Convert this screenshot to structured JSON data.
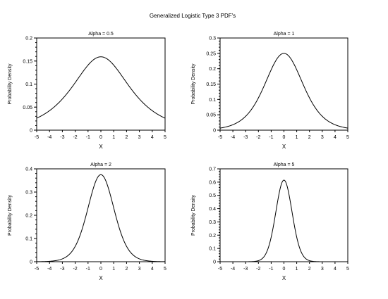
{
  "figure": {
    "title": "Generalized Logistic Type 3 PDF's"
  },
  "chart_data": [
    {
      "type": "line",
      "title": "Alpha = 0.5",
      "xlabel": "X",
      "ylabel": "Probability Density",
      "xlim": [
        -5,
        5
      ],
      "ylim": [
        0,
        0.2
      ],
      "xticks": [
        -5,
        -4,
        -3,
        -2,
        -1,
        0,
        1,
        2,
        3,
        4,
        5
      ],
      "yticks": [
        0,
        0.05,
        0.1,
        0.15,
        0.2
      ],
      "ytick_labels": [
        "0",
        "0.05",
        "0.1",
        "0.15",
        "0.2"
      ],
      "minor_y_step": 0.01,
      "alpha": 0.5,
      "x": [
        -5,
        -4,
        -3,
        -2,
        -1,
        0,
        1,
        2,
        3,
        4,
        5
      ],
      "y": [
        0.026,
        0.043,
        0.068,
        0.1,
        0.134,
        0.159,
        0.134,
        0.1,
        0.068,
        0.043,
        0.026
      ]
    },
    {
      "type": "line",
      "title": "Alpha = 1",
      "xlabel": "X",
      "ylabel": "Probability Density",
      "xlim": [
        -5,
        5
      ],
      "ylim": [
        0,
        0.3
      ],
      "xticks": [
        -5,
        -4,
        -3,
        -2,
        -1,
        0,
        1,
        2,
        3,
        4,
        5
      ],
      "yticks": [
        0,
        0.05,
        0.1,
        0.15,
        0.2,
        0.25,
        0.3
      ],
      "ytick_labels": [
        "0",
        "0.05",
        "0.1",
        "0.15",
        "0.2",
        "0.25",
        "0.3"
      ],
      "minor_y_step": 0.01,
      "alpha": 1,
      "x": [
        -5,
        -4,
        -3,
        -2,
        -1,
        0,
        1,
        2,
        3,
        4,
        5
      ],
      "y": [
        0.007,
        0.018,
        0.045,
        0.105,
        0.197,
        0.25,
        0.197,
        0.105,
        0.045,
        0.018,
        0.007
      ]
    },
    {
      "type": "line",
      "title": "Alpha = 2",
      "xlabel": "X",
      "ylabel": "Probability Density",
      "xlim": [
        -5,
        5
      ],
      "ylim": [
        0,
        0.4
      ],
      "xticks": [
        -5,
        -4,
        -3,
        -2,
        -1,
        0,
        1,
        2,
        3,
        4,
        5
      ],
      "yticks": [
        0,
        0.1,
        0.2,
        0.3,
        0.4
      ],
      "ytick_labels": [
        "0",
        "0.1",
        "0.2",
        "0.3",
        "0.4"
      ],
      "minor_y_step": 0.02,
      "alpha": 2,
      "x": [
        -5,
        -4,
        -3,
        -2,
        -1,
        0,
        1,
        2,
        3,
        4,
        5
      ],
      "y": [
        0,
        0.001,
        0.009,
        0.049,
        0.189,
        0.375,
        0.189,
        0.049,
        0.009,
        0.001,
        0
      ]
    },
    {
      "type": "line",
      "title": "Alpha = 5",
      "xlabel": "X",
      "ylabel": "Probability Density",
      "xlim": [
        -5,
        5
      ],
      "ylim": [
        0,
        0.7
      ],
      "xticks": [
        -5,
        -4,
        -3,
        -2,
        -1,
        0,
        1,
        2,
        3,
        4,
        5
      ],
      "yticks": [
        0,
        0.1,
        0.2,
        0.3,
        0.4,
        0.5,
        0.6,
        0.7
      ],
      "ytick_labels": [
        "0",
        "0.1",
        "0.2",
        "0.3",
        "0.4",
        "0.5",
        "0.6",
        "0.7"
      ],
      "minor_y_step": 0.02,
      "alpha": 5,
      "x": [
        -5,
        -4,
        -3,
        -2,
        -1,
        0,
        1,
        2,
        3,
        4,
        5
      ],
      "y": [
        0,
        0,
        0,
        0.002,
        0.149,
        0.615,
        0.149,
        0.002,
        0,
        0,
        0
      ]
    }
  ]
}
